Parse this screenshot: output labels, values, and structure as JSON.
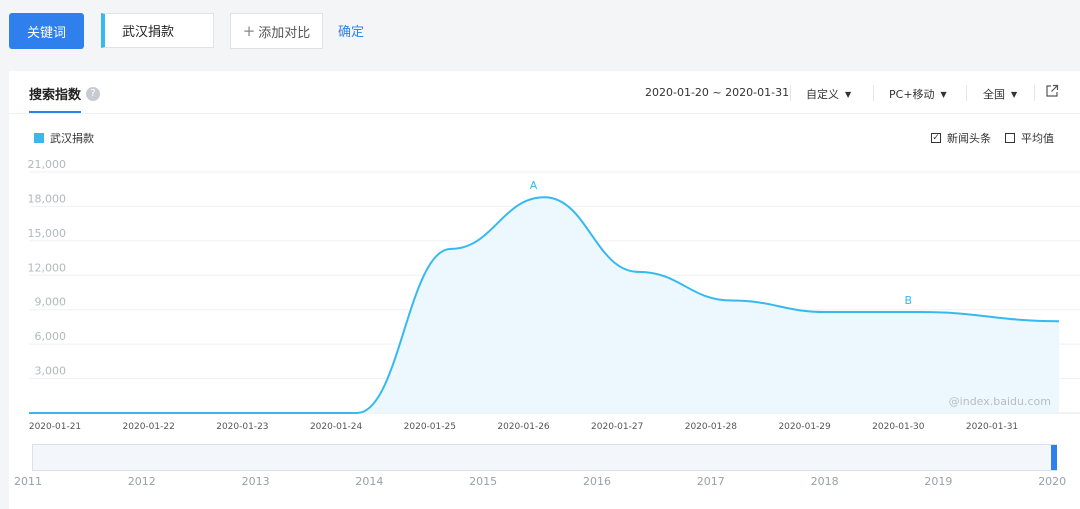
{
  "topbar": {
    "keyword_button": "关键词",
    "keyword_value": "武汉捐款",
    "add_compare": "添加对比",
    "add_icon": "plus-icon",
    "confirm": "确定"
  },
  "card": {
    "tab_label": "搜索指数",
    "help_icon": "question-icon",
    "date_range": "2020-01-20 ~ 2020-01-31",
    "range_mode": "自定义",
    "device": "PC+移动",
    "region": "全国",
    "export_icon": "external-link-icon",
    "legend_label": "武汉捐款",
    "news_checkbox": {
      "label": "新闻头条",
      "checked": true
    },
    "avg_checkbox": {
      "label": "平均值",
      "checked": false
    },
    "watermark": "@index.baidu.com"
  },
  "chart_data": {
    "type": "area",
    "series": [
      {
        "name": "武汉捐款",
        "color": "#36b9f0",
        "x": [
          "2020-01-20",
          "2020-01-21",
          "2020-01-22",
          "2020-01-23",
          "2020-01-24",
          "2020-01-25",
          "2020-01-26",
          "2020-01-27",
          "2020-01-28",
          "2020-01-29",
          "2020-01-30",
          "2020-01-31"
        ],
        "values": [
          0,
          0,
          0,
          0,
          0,
          14300,
          18800,
          12300,
          9800,
          8800,
          8800,
          8000
        ]
      }
    ],
    "x_tick_labels": [
      "2020-01-21",
      "2020-01-22",
      "2020-01-23",
      "2020-01-24",
      "2020-01-25",
      "2020-01-26",
      "2020-01-27",
      "2020-01-28",
      "2020-01-29",
      "2020-01-30",
      "2020-01-31"
    ],
    "y_tick_labels": [
      "3,000",
      "6,000",
      "9,000",
      "12,000",
      "15,000",
      "18,000",
      "21,000"
    ],
    "y_ticks": [
      3000,
      6000,
      9000,
      12000,
      15000,
      18000,
      21000
    ],
    "ylim": [
      0,
      21000
    ],
    "grid": true,
    "annotations": [
      {
        "label": "A",
        "x": "2020-01-26",
        "y": 18800
      },
      {
        "label": "B",
        "x": "2020-01-30",
        "y": 8800
      }
    ],
    "navigator_years": [
      "2011",
      "2012",
      "2013",
      "2014",
      "2015",
      "2016",
      "2017",
      "2018",
      "2019",
      "2020"
    ]
  }
}
